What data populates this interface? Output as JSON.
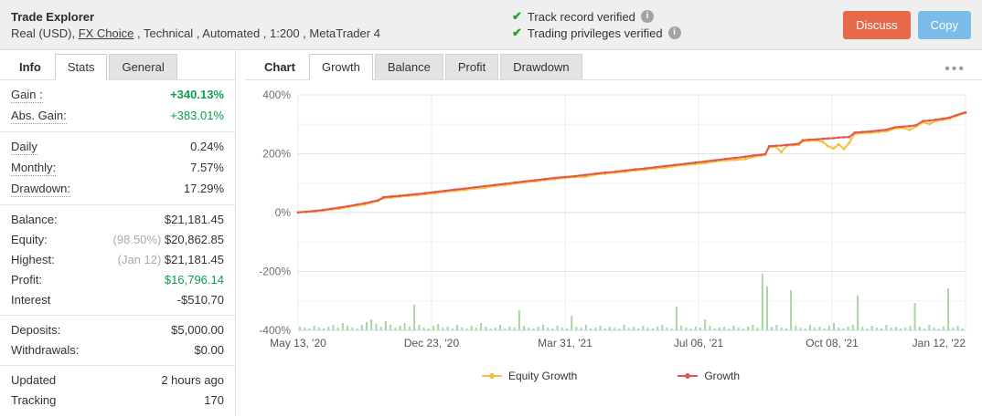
{
  "header": {
    "title": "Trade Explorer",
    "subtitle_prefix": "Real (USD), ",
    "broker_link": "FX Choice",
    "subtitle_suffix": " , Technical , Automated , 1:200 , MetaTrader 4",
    "verifications": [
      {
        "label": "Track record verified"
      },
      {
        "label": "Trading privileges verified"
      }
    ],
    "buttons": {
      "discuss": "Discuss",
      "copy": "Copy"
    },
    "colors": {
      "discuss_bg": "#e8694a",
      "copy_bg": "#7bbde8",
      "check_green": "#28a228"
    }
  },
  "sidebar": {
    "tabs": [
      {
        "label": "Info",
        "state": "title"
      },
      {
        "label": "Stats",
        "state": "selected"
      },
      {
        "label": "General",
        "state": "normal"
      }
    ],
    "stats_groups": [
      [
        {
          "label": "Gain :",
          "value": "+340.13%",
          "value_class": "green bold",
          "dotted": true
        },
        {
          "label": "Abs. Gain:",
          "value": "+383.01%",
          "value_class": "green",
          "dotted": true
        }
      ],
      [
        {
          "label": "Daily",
          "value": "0.24%",
          "dotted": true
        },
        {
          "label": "Monthly:",
          "value": "7.57%",
          "dotted": true
        },
        {
          "label": "Drawdown:",
          "value": "17.29%",
          "dotted": true
        }
      ],
      [
        {
          "label": "Balance:",
          "value": "$21,181.45"
        },
        {
          "label": "Equity:",
          "prefix": "(98.50%) ",
          "value": "$20,862.85"
        },
        {
          "label": "Highest:",
          "prefix": "(Jan 12) ",
          "value": "$21,181.45"
        },
        {
          "label": "Profit:",
          "value": "$16,796.14",
          "value_class": "green"
        },
        {
          "label": "Interest",
          "value": "-$510.70"
        }
      ],
      [
        {
          "label": "Deposits:",
          "value": "$5,000.00"
        },
        {
          "label": "Withdrawals:",
          "value": "$0.00"
        }
      ],
      [
        {
          "label": "Updated",
          "value": "2 hours ago"
        },
        {
          "label": "Tracking",
          "value": "170"
        }
      ]
    ]
  },
  "chart_panel": {
    "tabs": [
      {
        "label": "Chart",
        "state": "title"
      },
      {
        "label": "Growth",
        "state": "selected"
      },
      {
        "label": "Balance",
        "state": "normal"
      },
      {
        "label": "Profit",
        "state": "normal"
      },
      {
        "label": "Drawdown",
        "state": "normal"
      }
    ],
    "menu_icon": "ellipsis-icon"
  },
  "chart_data": {
    "type": "line",
    "title": "",
    "xlabel": "",
    "ylabel": "",
    "ylim": [
      -400,
      400
    ],
    "grid": true,
    "legend_position": "bottom",
    "y_ticks": [
      {
        "v": 400,
        "label": "400%"
      },
      {
        "v": 200,
        "label": "200%"
      },
      {
        "v": 0,
        "label": "0%"
      },
      {
        "v": -200,
        "label": "-200%"
      },
      {
        "v": -400,
        "label": "-400%"
      }
    ],
    "x_tick_labels": [
      "May 13, '20",
      "Dec 23, '20",
      "Mar 31, '21",
      "Jul 06, '21",
      "Oct 08, '21",
      "Jan 12, '22"
    ],
    "series": [
      {
        "name": "Equity Growth",
        "color": "#f3c13d"
      },
      {
        "name": "Growth",
        "color": "#e4564c"
      }
    ],
    "points": [
      [
        0.0,
        1,
        0
      ],
      [
        0.012,
        3,
        2
      ],
      [
        0.025,
        6,
        4
      ],
      [
        0.038,
        9,
        7
      ],
      [
        0.05,
        13,
        10
      ],
      [
        0.062,
        17,
        13
      ],
      [
        0.075,
        22,
        19
      ],
      [
        0.088,
        27,
        24
      ],
      [
        0.1,
        32,
        27
      ],
      [
        0.11,
        37,
        34
      ],
      [
        0.12,
        42,
        40
      ],
      [
        0.128,
        52,
        49
      ],
      [
        0.14,
        55,
        51
      ],
      [
        0.152,
        57,
        54
      ],
      [
        0.165,
        60,
        57
      ],
      [
        0.178,
        63,
        59
      ],
      [
        0.19,
        66,
        63
      ],
      [
        0.205,
        70,
        66
      ],
      [
        0.22,
        74,
        71
      ],
      [
        0.235,
        78,
        74
      ],
      [
        0.25,
        82,
        77
      ],
      [
        0.265,
        86,
        82
      ],
      [
        0.28,
        90,
        84
      ],
      [
        0.295,
        94,
        91
      ],
      [
        0.31,
        98,
        93
      ],
      [
        0.325,
        102,
        99
      ],
      [
        0.34,
        106,
        103
      ],
      [
        0.355,
        110,
        106
      ],
      [
        0.37,
        114,
        111
      ],
      [
        0.385,
        118,
        114
      ],
      [
        0.4,
        121,
        118
      ],
      [
        0.415,
        124,
        121
      ],
      [
        0.43,
        128,
        122
      ],
      [
        0.445,
        132,
        129
      ],
      [
        0.46,
        136,
        132
      ],
      [
        0.475,
        139,
        136
      ],
      [
        0.49,
        143,
        139
      ],
      [
        0.505,
        147,
        143
      ],
      [
        0.52,
        150,
        146
      ],
      [
        0.535,
        154,
        150
      ],
      [
        0.55,
        158,
        153
      ],
      [
        0.565,
        162,
        158
      ],
      [
        0.58,
        166,
        162
      ],
      [
        0.595,
        170,
        165
      ],
      [
        0.61,
        174,
        168
      ],
      [
        0.625,
        178,
        174
      ],
      [
        0.64,
        182,
        177
      ],
      [
        0.655,
        186,
        179
      ],
      [
        0.67,
        190,
        182
      ],
      [
        0.682,
        194,
        189
      ],
      [
        0.694,
        197,
        194
      ],
      [
        0.7,
        199,
        196
      ],
      [
        0.706,
        226,
        223
      ],
      [
        0.716,
        227,
        223
      ],
      [
        0.724,
        228,
        206
      ],
      [
        0.732,
        230,
        227
      ],
      [
        0.742,
        232,
        229
      ],
      [
        0.75,
        234,
        230
      ],
      [
        0.756,
        246,
        242
      ],
      [
        0.766,
        248,
        244
      ],
      [
        0.776,
        249,
        246
      ],
      [
        0.786,
        251,
        240
      ],
      [
        0.794,
        252,
        226
      ],
      [
        0.802,
        253,
        218
      ],
      [
        0.81,
        255,
        232
      ],
      [
        0.818,
        256,
        216
      ],
      [
        0.826,
        257,
        238
      ],
      [
        0.834,
        272,
        268
      ],
      [
        0.846,
        274,
        270
      ],
      [
        0.858,
        276,
        271
      ],
      [
        0.87,
        279,
        274
      ],
      [
        0.882,
        282,
        277
      ],
      [
        0.894,
        290,
        286
      ],
      [
        0.906,
        292,
        288
      ],
      [
        0.916,
        294,
        281
      ],
      [
        0.926,
        297,
        293
      ],
      [
        0.936,
        311,
        307
      ],
      [
        0.946,
        313,
        301
      ],
      [
        0.956,
        316,
        312
      ],
      [
        0.966,
        319,
        315
      ],
      [
        0.976,
        323,
        319
      ],
      [
        0.986,
        331,
        328
      ],
      [
        1.0,
        341,
        339
      ]
    ],
    "volume_bars": {
      "color": "#a9d6a1",
      "heights": [
        4,
        3,
        2,
        5,
        3,
        2,
        4,
        6,
        3,
        8,
        5,
        3,
        2,
        6,
        9,
        12,
        7,
        4,
        10,
        6,
        3,
        5,
        8,
        4,
        28,
        6,
        3,
        2,
        5,
        7,
        3,
        4,
        2,
        6,
        3,
        2,
        5,
        3,
        8,
        4,
        2,
        3,
        6,
        2,
        4,
        3,
        22,
        5,
        3,
        2,
        4,
        6,
        3,
        2,
        5,
        3,
        2,
        16,
        4,
        3,
        6,
        2,
        3,
        5,
        2,
        4,
        3,
        2,
        6,
        3,
        4,
        2,
        5,
        3,
        2,
        4,
        6,
        3,
        2,
        26,
        5,
        3,
        2,
        4,
        3,
        12,
        5,
        2,
        3,
        4,
        2,
        5,
        3,
        2,
        4,
        6,
        3,
        62,
        48,
        4,
        6,
        3,
        2,
        44,
        5,
        3,
        2,
        6,
        3,
        4,
        2,
        5,
        8,
        3,
        2,
        4,
        6,
        38,
        4,
        2,
        5,
        3,
        2,
        6,
        3,
        4,
        2,
        3,
        5,
        30,
        4,
        2,
        6,
        3,
        2,
        4,
        46,
        3,
        5,
        2
      ]
    }
  }
}
